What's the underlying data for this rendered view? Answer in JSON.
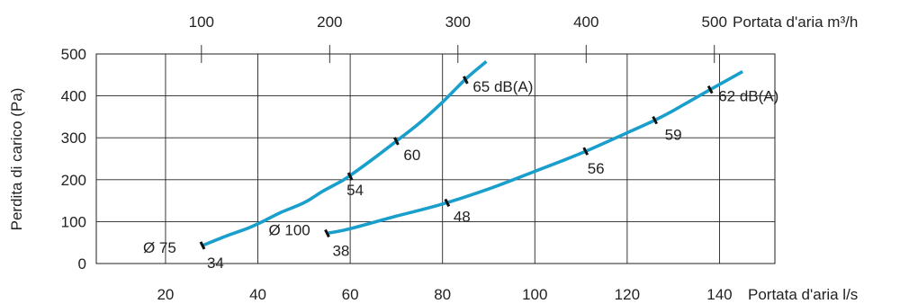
{
  "chart_data": {
    "type": "line",
    "title": "",
    "xlabel": "Portata d'aria l/s",
    "x2label": "Portata d'aria m³/h",
    "ylabel": "Perdita di carico (Pa)",
    "xlim": [
      5,
      152
    ],
    "ylim": [
      0,
      500
    ],
    "x_ticks": [
      20,
      40,
      60,
      80,
      100,
      120,
      140
    ],
    "x_tick_labels": [
      "20",
      "40",
      "60",
      "80",
      "100",
      "120",
      "140"
    ],
    "x2_ticks": [
      100,
      200,
      300,
      400,
      500
    ],
    "x2_tick_labels": [
      "100",
      "200",
      "300",
      "400",
      "500"
    ],
    "y_ticks": [
      0,
      100,
      200,
      300,
      400,
      500
    ],
    "y_tick_labels": [
      "0",
      "100",
      "200",
      "300",
      "400",
      "500"
    ],
    "grid": true,
    "line_color": "#1a9fcc",
    "series": [
      {
        "name": "Ø 75",
        "x": [
          28,
          33,
          38,
          41,
          45,
          50,
          54,
          58,
          60,
          65,
          70,
          75,
          80,
          85,
          89.5
        ],
        "y": [
          43,
          65,
          85,
          100,
          122,
          145,
          172,
          196,
          210,
          250,
          292,
          335,
          385,
          440,
          482
        ],
        "markers": [
          {
            "x": 28,
            "y": 43,
            "label": "34"
          },
          {
            "x": 60,
            "y": 208,
            "label": "54"
          },
          {
            "x": 70,
            "y": 292,
            "label": "60"
          },
          {
            "x": 85,
            "y": 438,
            "label": "65 dB(A)"
          }
        ]
      },
      {
        "name": "Ø 100",
        "x": [
          55,
          60,
          70,
          80,
          90,
          100,
          110,
          120,
          126,
          130,
          138,
          145
        ],
        "y": [
          72,
          83,
          113,
          142,
          178,
          220,
          263,
          312,
          342,
          365,
          415,
          458
        ],
        "markers": [
          {
            "x": 55,
            "y": 72,
            "label": "38"
          },
          {
            "x": 81,
            "y": 145,
            "label": "48"
          },
          {
            "x": 111,
            "y": 268,
            "label": "56"
          },
          {
            "x": 126,
            "y": 342,
            "label": "59"
          },
          {
            "x": 138,
            "y": 415,
            "label": "62 dB(A)"
          }
        ]
      }
    ]
  }
}
